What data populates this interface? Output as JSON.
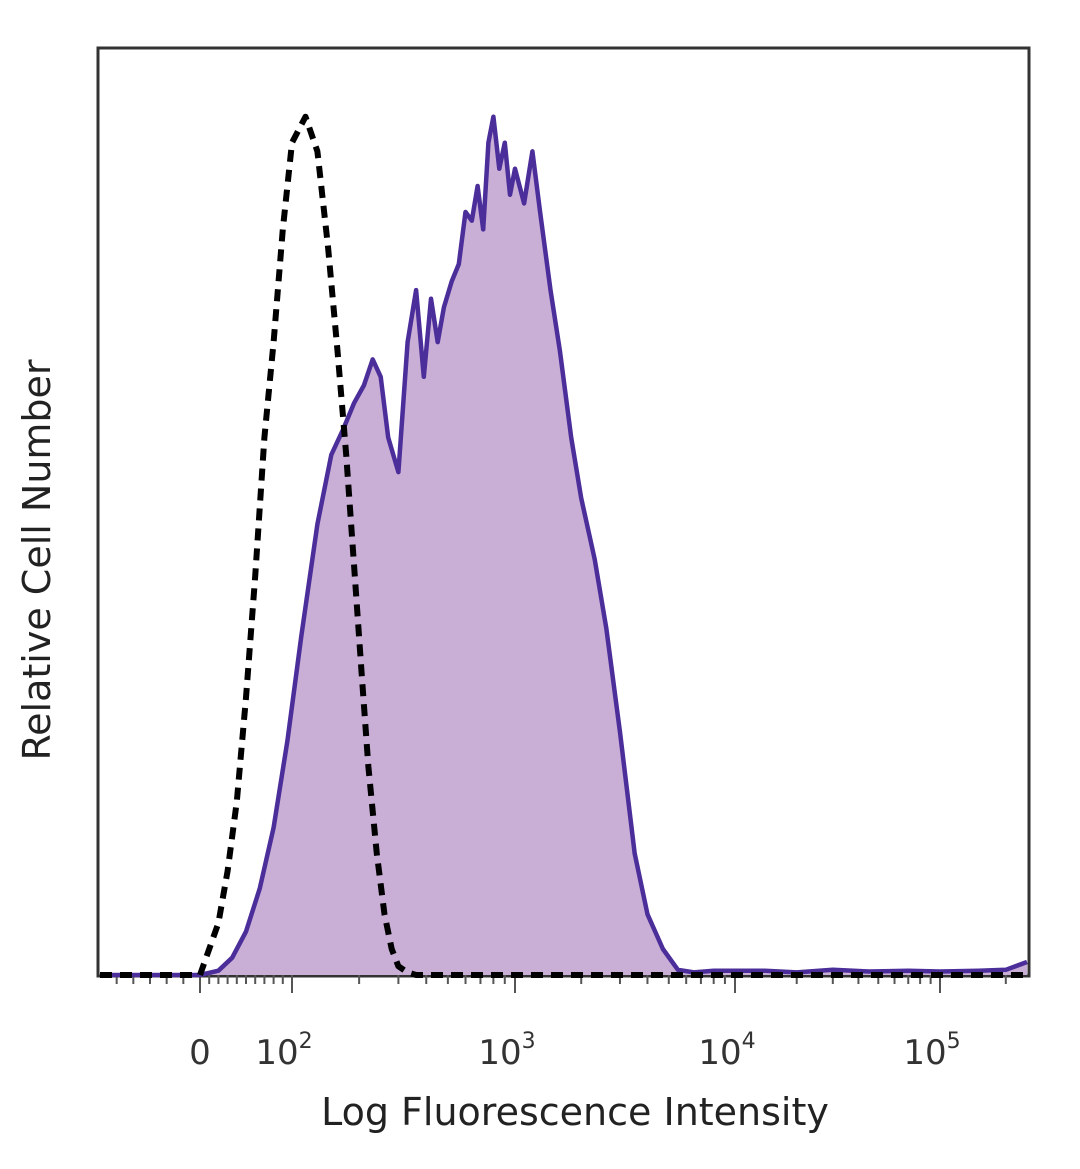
{
  "chart_data": {
    "type": "histogram",
    "xlabel": "Log Fluorescence Intensity",
    "ylabel": "Relative Cell Number",
    "x_scale": "biexponential (log above 100)",
    "xlim": [
      -60,
      250000
    ],
    "ylim": [
      0,
      100
    ],
    "x_ticks": [
      {
        "value": 0,
        "base": "0",
        "exp": ""
      },
      {
        "value": 100,
        "base": "10",
        "exp": "2"
      },
      {
        "value": 1000,
        "base": "10",
        "exp": "3"
      },
      {
        "value": 10000,
        "base": "10",
        "exp": "4"
      },
      {
        "value": 100000,
        "base": "10",
        "exp": "5"
      }
    ],
    "grid": false,
    "legend": "none",
    "series": [
      {
        "style": "filled",
        "color": "#4b2e9a",
        "fill": "#c9aed6",
        "x": [
          -60,
          -20,
          0,
          20,
          35,
          50,
          65,
          80,
          95,
          110,
          130,
          150,
          170,
          190,
          210,
          230,
          250,
          270,
          300,
          330,
          360,
          390,
          420,
          450,
          480,
          520,
          560,
          600,
          640,
          680,
          720,
          760,
          800,
          850,
          900,
          950,
          1000,
          1100,
          1200,
          1300,
          1450,
          1600,
          1800,
          2000,
          2300,
          2600,
          3000,
          3500,
          4000,
          4700,
          5500,
          6500,
          8000,
          10000,
          14000,
          20000,
          30000,
          45000,
          70000,
          100000,
          150000,
          200000,
          250000
        ],
        "y": [
          0,
          0,
          0,
          0.5,
          2,
          5,
          10,
          17,
          27,
          39,
          52,
          60,
          63,
          66,
          68,
          71,
          69,
          62,
          58,
          73,
          79,
          69,
          78,
          73,
          77,
          80,
          82,
          88,
          87,
          91,
          86,
          96,
          99,
          93,
          96,
          90,
          93,
          89,
          95,
          88,
          79,
          72,
          62,
          55,
          48,
          40,
          28,
          14,
          7,
          3,
          0.6,
          0.3,
          0.5,
          0.5,
          0.5,
          0.3,
          0.6,
          0.4,
          0.5,
          0.4,
          0.5,
          0.6,
          1.5
        ]
      },
      {
        "style": "dashed",
        "color": "#000000",
        "x": [
          -60,
          -20,
          0,
          10,
          20,
          30,
          40,
          50,
          60,
          70,
          80,
          90,
          100,
          115,
          130,
          145,
          160,
          175,
          190,
          205,
          220,
          240,
          260,
          280,
          300,
          330,
          360,
          400,
          450,
          600,
          1000,
          3000,
          10000,
          30000,
          100000,
          250000
        ],
        "y": [
          0,
          0,
          0,
          3,
          6,
          12,
          20,
          32,
          46,
          62,
          73,
          86,
          96,
          99,
          95,
          84,
          72,
          60,
          47,
          35,
          24,
          14,
          7,
          3,
          1,
          0.3,
          0,
          0,
          0,
          0,
          0,
          0,
          0,
          0,
          0,
          0
        ]
      }
    ]
  }
}
